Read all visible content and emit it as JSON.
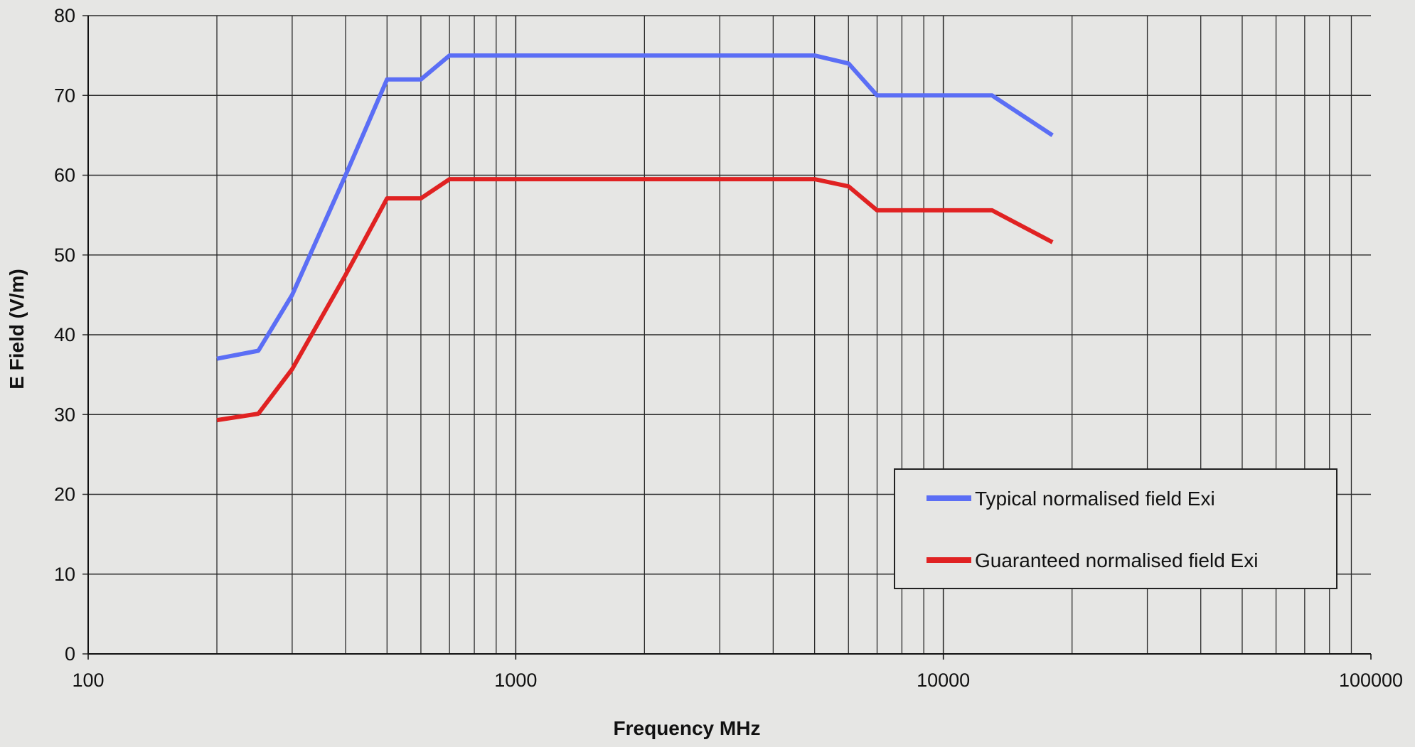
{
  "chart_data": {
    "type": "line",
    "title": "",
    "xlabel": "Frequency MHz",
    "ylabel": "E Field (V/m)",
    "xscale": "log",
    "xlim": [
      100,
      100000
    ],
    "ylim": [
      0,
      80
    ],
    "grid": true,
    "legend_position": "bottom-right",
    "x_ticks": [
      "100",
      "1000",
      "10000",
      "100000"
    ],
    "y_ticks": [
      "0",
      "10",
      "20",
      "30",
      "40",
      "50",
      "60",
      "70",
      "80"
    ],
    "series": [
      {
        "name": "Typical normalised field Exi",
        "color": "#5b6ef5",
        "points": [
          [
            200,
            37
          ],
          [
            250,
            38
          ],
          [
            300,
            45
          ],
          [
            400,
            60
          ],
          [
            500,
            72
          ],
          [
            600,
            72
          ],
          [
            700,
            75
          ],
          [
            1000,
            75
          ],
          [
            2000,
            75
          ],
          [
            3000,
            75
          ],
          [
            5000,
            75
          ],
          [
            6000,
            74
          ],
          [
            7000,
            70
          ],
          [
            10000,
            70
          ],
          [
            13000,
            70
          ],
          [
            18000,
            65
          ]
        ]
      },
      {
        "name": "Guaranteed normalised field Exi",
        "color": "#e02222",
        "points": [
          [
            200,
            29.3
          ],
          [
            250,
            30.1
          ],
          [
            300,
            35.7
          ],
          [
            400,
            47.5
          ],
          [
            500,
            57.1
          ],
          [
            600,
            57.1
          ],
          [
            700,
            59.5
          ],
          [
            1000,
            59.5
          ],
          [
            2000,
            59.5
          ],
          [
            3000,
            59.5
          ],
          [
            5000,
            59.5
          ],
          [
            6000,
            58.6
          ],
          [
            7000,
            55.6
          ],
          [
            10000,
            55.6
          ],
          [
            13000,
            55.6
          ],
          [
            18000,
            51.6
          ]
        ]
      }
    ]
  }
}
